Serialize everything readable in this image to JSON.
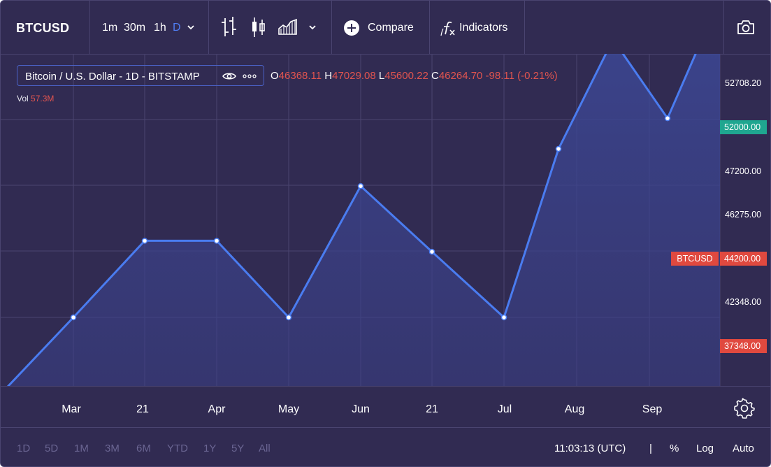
{
  "toolbar": {
    "symbol": "BTCUSD",
    "intervals": [
      "1m",
      "30m",
      "1h",
      "D"
    ],
    "active_interval": "D",
    "compare_label": "Compare",
    "indicators_label": "Indicators",
    "icons": [
      "chevron-down-icon",
      "bar-chart-icon",
      "candlestick-icon",
      "area-chart-icon",
      "plus-circle-icon",
      "fx-icon",
      "camera-icon"
    ]
  },
  "legend": {
    "title": "Bitcoin / U.S. Dollar - 1D - BITSTAMP",
    "ohlc": [
      {
        "k": "O",
        "v": "46368.11"
      },
      {
        "k": "H",
        "v": "47029.08"
      },
      {
        "k": "L",
        "v": "45600.22"
      },
      {
        "k": "C",
        "v": "46264.70 -98.11 (-0.21%)"
      }
    ],
    "vol_key": "Vol",
    "vol_value": "57.3M"
  },
  "price_axis": {
    "labels": [
      "52708.20",
      "47200.00",
      "46275.00",
      "42348.00"
    ],
    "current_tag": "52000.00",
    "series_price": "44200.00",
    "series_name": "BTCUSD",
    "low_tag": "37348.00"
  },
  "time_axis": [
    "Mar",
    "21",
    "Apr",
    "May",
    "Jun",
    "21",
    "Jul",
    "Aug",
    "Sep"
  ],
  "bottom": {
    "ranges": [
      "1D",
      "5D",
      "1M",
      "3M",
      "6M",
      "YTD",
      "1Y",
      "5Y",
      "All"
    ],
    "clock": "11:03:13 (UTC)",
    "separator": "|",
    "percent": "%",
    "log": "Log",
    "auto": "Auto"
  },
  "colors": {
    "background": "#312b52",
    "line": "#4a7cf0",
    "grid": "#4a4470",
    "green_tag": "#1fa690",
    "red_tag": "#e0493f",
    "negative_text": "#e0544f"
  },
  "chart_data": {
    "type": "area",
    "x": [
      "start",
      "Mar",
      "21",
      "Apr",
      "May",
      "Jun",
      "21",
      "Jul",
      "Aug",
      "Aug+",
      "Sep",
      "end"
    ],
    "values": [
      37800,
      41300,
      44800,
      44800,
      41300,
      47300,
      44300,
      41300,
      49000,
      54000,
      50400,
      55900
    ],
    "ylabel": "",
    "xlabel": "",
    "grid": true
  }
}
